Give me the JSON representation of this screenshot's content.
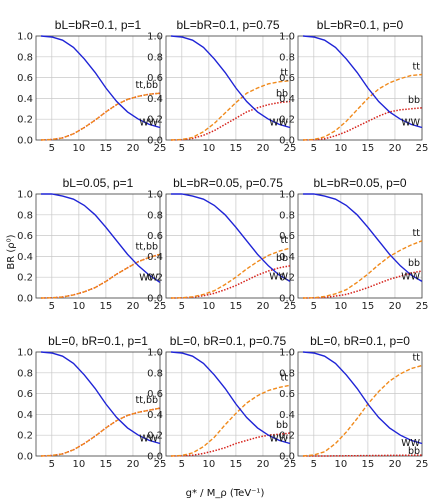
{
  "figure": {
    "ylabel": "BR (ρ⁰)",
    "xlabel": "g* / M_ρ (TeV⁻¹)",
    "x_ticks": [
      "5",
      "10",
      "15",
      "20",
      "25"
    ],
    "y_ticks": [
      "0.0",
      "0.2",
      "0.4",
      "0.6",
      "0.8",
      "1.0"
    ]
  },
  "colors": {
    "WW": "#1f24d6",
    "tt": "#f08a1c",
    "bb": "#d6231c"
  },
  "chart_data": [
    {
      "type": "line",
      "title": "bL=bR=0.1, p=1",
      "xlim": [
        3,
        25
      ],
      "ylim": [
        0,
        1
      ],
      "grid": true,
      "labels": {
        "tt": "tt,bb",
        "WW": "WW"
      },
      "series": [
        {
          "name": "WW",
          "style": "solid",
          "x": [
            3,
            5,
            7,
            9,
            11,
            13,
            15,
            17,
            19,
            21,
            23,
            25
          ],
          "values": [
            1.0,
            0.99,
            0.96,
            0.89,
            0.78,
            0.65,
            0.5,
            0.37,
            0.27,
            0.2,
            0.15,
            0.12
          ]
        },
        {
          "name": "tt",
          "style": "dashed",
          "x": [
            3,
            5,
            7,
            9,
            11,
            13,
            15,
            17,
            19,
            21,
            23,
            25
          ],
          "values": [
            0,
            0.005,
            0.02,
            0.06,
            0.12,
            0.19,
            0.27,
            0.34,
            0.39,
            0.42,
            0.44,
            0.45
          ]
        },
        {
          "name": "bb",
          "style": "dotted",
          "x": [
            3,
            5,
            7,
            9,
            11,
            13,
            15,
            17,
            19,
            21,
            23,
            25
          ],
          "values": [
            0,
            0.005,
            0.02,
            0.06,
            0.12,
            0.19,
            0.27,
            0.34,
            0.39,
            0.42,
            0.44,
            0.45
          ]
        }
      ]
    },
    {
      "type": "line",
      "title": "bL=bR=0.1, p=0.75",
      "xlim": [
        3,
        25
      ],
      "ylim": [
        0,
        1
      ],
      "grid": true,
      "labels": {
        "tt": "tt",
        "bb": "bb",
        "WW": "WW"
      },
      "series": [
        {
          "name": "WW",
          "style": "solid",
          "x": [
            3,
            5,
            7,
            9,
            11,
            13,
            15,
            17,
            19,
            21,
            23,
            25
          ],
          "values": [
            1.0,
            0.99,
            0.96,
            0.89,
            0.78,
            0.65,
            0.5,
            0.37,
            0.27,
            0.2,
            0.15,
            0.12
          ]
        },
        {
          "name": "tt",
          "style": "dashed",
          "x": [
            3,
            5,
            7,
            9,
            11,
            13,
            15,
            17,
            19,
            21,
            23,
            25
          ],
          "values": [
            0,
            0.005,
            0.025,
            0.08,
            0.16,
            0.26,
            0.36,
            0.45,
            0.5,
            0.54,
            0.56,
            0.57
          ]
        },
        {
          "name": "bb",
          "style": "dotted",
          "x": [
            3,
            5,
            7,
            9,
            11,
            13,
            15,
            17,
            19,
            21,
            23,
            25
          ],
          "values": [
            0,
            0.003,
            0.015,
            0.045,
            0.09,
            0.15,
            0.21,
            0.27,
            0.31,
            0.34,
            0.36,
            0.37
          ]
        }
      ]
    },
    {
      "type": "line",
      "title": "bL=bR=0.1, p=0",
      "xlim": [
        3,
        25
      ],
      "ylim": [
        0,
        1
      ],
      "grid": true,
      "labels": {
        "tt": "tt",
        "bb": "bb",
        "WW": "WW"
      },
      "series": [
        {
          "name": "WW",
          "style": "solid",
          "x": [
            3,
            5,
            7,
            9,
            11,
            13,
            15,
            17,
            19,
            21,
            23,
            25
          ],
          "values": [
            1.0,
            0.99,
            0.96,
            0.89,
            0.78,
            0.65,
            0.5,
            0.37,
            0.27,
            0.2,
            0.15,
            0.12
          ]
        },
        {
          "name": "tt",
          "style": "dashed",
          "x": [
            3,
            5,
            7,
            9,
            11,
            13,
            15,
            17,
            19,
            21,
            23,
            25
          ],
          "values": [
            0,
            0.005,
            0.03,
            0.09,
            0.18,
            0.29,
            0.4,
            0.49,
            0.55,
            0.59,
            0.62,
            0.63
          ]
        },
        {
          "name": "bb",
          "style": "dotted",
          "x": [
            3,
            5,
            7,
            9,
            11,
            13,
            15,
            17,
            19,
            21,
            23,
            25
          ],
          "values": [
            0,
            0.003,
            0.012,
            0.04,
            0.08,
            0.13,
            0.18,
            0.23,
            0.27,
            0.29,
            0.3,
            0.31
          ]
        }
      ]
    },
    {
      "type": "line",
      "title": "bL=0.05, p=1",
      "xlim": [
        3,
        25
      ],
      "ylim": [
        0,
        1
      ],
      "grid": true,
      "labels": {
        "tt": "tt,bb",
        "WW": "WW"
      },
      "series": [
        {
          "name": "WW",
          "style": "solid",
          "x": [
            3,
            5,
            7,
            9,
            11,
            13,
            15,
            17,
            19,
            21,
            23,
            25
          ],
          "values": [
            1.0,
            1.0,
            0.98,
            0.95,
            0.89,
            0.8,
            0.68,
            0.55,
            0.42,
            0.31,
            0.22,
            0.15
          ]
        },
        {
          "name": "tt",
          "style": "dashed",
          "x": [
            3,
            5,
            7,
            9,
            11,
            13,
            15,
            17,
            19,
            21,
            23,
            25
          ],
          "values": [
            0,
            0.002,
            0.01,
            0.03,
            0.06,
            0.1,
            0.16,
            0.23,
            0.29,
            0.35,
            0.39,
            0.42
          ]
        },
        {
          "name": "bb",
          "style": "dotted",
          "x": [
            3,
            5,
            7,
            9,
            11,
            13,
            15,
            17,
            19,
            21,
            23,
            25
          ],
          "values": [
            0,
            0.002,
            0.01,
            0.03,
            0.06,
            0.1,
            0.16,
            0.23,
            0.29,
            0.35,
            0.39,
            0.42
          ]
        }
      ]
    },
    {
      "type": "line",
      "title": "bL=bR=0.05, p=0.75",
      "xlim": [
        3,
        25
      ],
      "ylim": [
        0,
        1
      ],
      "grid": true,
      "labels": {
        "tt": "tt",
        "bb": "bb",
        "WW": "WW"
      },
      "series": [
        {
          "name": "WW",
          "style": "solid",
          "x": [
            3,
            5,
            7,
            9,
            11,
            13,
            15,
            17,
            19,
            21,
            23,
            25
          ],
          "values": [
            1.0,
            1.0,
            0.98,
            0.95,
            0.89,
            0.8,
            0.68,
            0.55,
            0.42,
            0.31,
            0.22,
            0.16
          ]
        },
        {
          "name": "tt",
          "style": "dashed",
          "x": [
            3,
            5,
            7,
            9,
            11,
            13,
            15,
            17,
            19,
            21,
            23,
            25
          ],
          "values": [
            0,
            0.002,
            0.012,
            0.035,
            0.07,
            0.13,
            0.2,
            0.28,
            0.35,
            0.41,
            0.45,
            0.48
          ]
        },
        {
          "name": "bb",
          "style": "dotted",
          "x": [
            3,
            5,
            7,
            9,
            11,
            13,
            15,
            17,
            19,
            21,
            23,
            25
          ],
          "values": [
            0,
            0.001,
            0.008,
            0.022,
            0.045,
            0.08,
            0.12,
            0.17,
            0.22,
            0.26,
            0.29,
            0.31
          ]
        }
      ]
    },
    {
      "type": "line",
      "title": "bL=bR=0.05, p=0",
      "xlim": [
        3,
        25
      ],
      "ylim": [
        0,
        1
      ],
      "grid": true,
      "labels": {
        "tt": "tt",
        "bb": "bb",
        "WW": "WW"
      },
      "series": [
        {
          "name": "WW",
          "style": "solid",
          "x": [
            3,
            5,
            7,
            9,
            11,
            13,
            15,
            17,
            19,
            21,
            23,
            25
          ],
          "values": [
            1.0,
            1.0,
            0.98,
            0.95,
            0.89,
            0.8,
            0.68,
            0.55,
            0.42,
            0.31,
            0.22,
            0.16
          ]
        },
        {
          "name": "tt",
          "style": "dashed",
          "x": [
            3,
            5,
            7,
            9,
            11,
            13,
            15,
            17,
            19,
            21,
            23,
            25
          ],
          "values": [
            0,
            0.002,
            0.014,
            0.04,
            0.08,
            0.15,
            0.23,
            0.32,
            0.4,
            0.46,
            0.51,
            0.55
          ]
        },
        {
          "name": "bb",
          "style": "dotted",
          "x": [
            3,
            5,
            7,
            9,
            11,
            13,
            15,
            17,
            19,
            21,
            23,
            25
          ],
          "values": [
            0,
            0.001,
            0.006,
            0.018,
            0.035,
            0.065,
            0.1,
            0.14,
            0.18,
            0.21,
            0.24,
            0.26
          ]
        }
      ]
    },
    {
      "type": "line",
      "title": "bL=0, bR=0.1, p=1",
      "xlim": [
        3,
        25
      ],
      "ylim": [
        0,
        1
      ],
      "grid": true,
      "labels": {
        "tt": "tt,bb",
        "WW": "WW"
      },
      "series": [
        {
          "name": "WW",
          "style": "solid",
          "x": [
            3,
            5,
            7,
            9,
            11,
            13,
            15,
            17,
            19,
            21,
            23,
            25
          ],
          "values": [
            1.0,
            0.99,
            0.96,
            0.89,
            0.78,
            0.65,
            0.5,
            0.37,
            0.27,
            0.2,
            0.15,
            0.12
          ]
        },
        {
          "name": "tt",
          "style": "dashed",
          "x": [
            3,
            5,
            7,
            9,
            11,
            13,
            15,
            17,
            19,
            21,
            23,
            25
          ],
          "values": [
            0,
            0.005,
            0.02,
            0.06,
            0.12,
            0.19,
            0.27,
            0.34,
            0.39,
            0.42,
            0.44,
            0.46
          ]
        },
        {
          "name": "bb",
          "style": "dotted",
          "x": [
            3,
            5,
            7,
            9,
            11,
            13,
            15,
            17,
            19,
            21,
            23,
            25
          ],
          "values": [
            0,
            0.005,
            0.02,
            0.06,
            0.12,
            0.19,
            0.27,
            0.34,
            0.39,
            0.42,
            0.44,
            0.46
          ]
        }
      ]
    },
    {
      "type": "line",
      "title": "bL=0, bR=0.1, p=0.75",
      "xlim": [
        3,
        25
      ],
      "ylim": [
        0,
        1
      ],
      "grid": true,
      "labels": {
        "tt": "tt",
        "bb": "bb",
        "WW": "WW"
      },
      "series": [
        {
          "name": "WW",
          "style": "solid",
          "x": [
            3,
            5,
            7,
            9,
            11,
            13,
            15,
            17,
            19,
            21,
            23,
            25
          ],
          "values": [
            1.0,
            0.99,
            0.96,
            0.89,
            0.78,
            0.65,
            0.5,
            0.37,
            0.27,
            0.2,
            0.15,
            0.12
          ]
        },
        {
          "name": "tt",
          "style": "dashed",
          "x": [
            3,
            5,
            7,
            9,
            11,
            13,
            15,
            17,
            19,
            21,
            23,
            25
          ],
          "values": [
            0,
            0.005,
            0.03,
            0.09,
            0.18,
            0.3,
            0.41,
            0.51,
            0.58,
            0.63,
            0.66,
            0.68
          ]
        },
        {
          "name": "bb",
          "style": "dotted",
          "x": [
            3,
            5,
            7,
            9,
            11,
            13,
            15,
            17,
            19,
            21,
            23,
            25
          ],
          "values": [
            0,
            0.002,
            0.008,
            0.025,
            0.05,
            0.08,
            0.12,
            0.15,
            0.18,
            0.2,
            0.21,
            0.22
          ]
        }
      ]
    },
    {
      "type": "line",
      "title": "bL=0, bR=0.1, p=0",
      "xlim": [
        3,
        25
      ],
      "ylim": [
        0,
        1
      ],
      "grid": true,
      "labels": {
        "tt": "tt",
        "bb": "bb",
        "WW": "WW"
      },
      "series": [
        {
          "name": "WW",
          "style": "solid",
          "x": [
            3,
            5,
            7,
            9,
            11,
            13,
            15,
            17,
            19,
            21,
            23,
            25
          ],
          "values": [
            1.0,
            0.99,
            0.96,
            0.89,
            0.78,
            0.65,
            0.5,
            0.37,
            0.27,
            0.2,
            0.15,
            0.12
          ]
        },
        {
          "name": "tt",
          "style": "dashed",
          "x": [
            3,
            5,
            7,
            9,
            11,
            13,
            15,
            17,
            19,
            21,
            23,
            25
          ],
          "values": [
            0,
            0.01,
            0.04,
            0.12,
            0.23,
            0.36,
            0.5,
            0.62,
            0.72,
            0.79,
            0.84,
            0.87
          ]
        },
        {
          "name": "bb",
          "style": "dotted",
          "x": [
            3,
            5,
            7,
            9,
            11,
            13,
            15,
            17,
            19,
            21,
            23,
            25
          ],
          "values": [
            0,
            0,
            0,
            0.001,
            0.002,
            0.003,
            0.004,
            0.005,
            0.006,
            0.007,
            0.008,
            0.009
          ]
        }
      ]
    }
  ]
}
